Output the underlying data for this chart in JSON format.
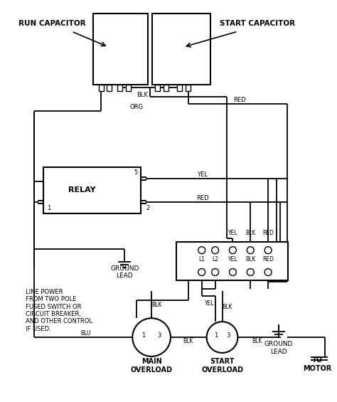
{
  "bg_color": "#ffffff",
  "line_color": "#000000",
  "lw": 1.3,
  "blw": 1.5,
  "labels": {
    "run_cap": "RUN CAPACITOR",
    "start_cap": "START CAPACITOR",
    "relay": "RELAY",
    "ground_lead": "GROUND\nLEAD",
    "main_overload": "MAIN\nOVERLOAD",
    "start_overload": "START\nOVERLOAD",
    "to_motor": "TO\nMOTOR",
    "line_power": "LINE POWER\nFROM TWO POLE\nFUSED SWITCH OR\nCIRCUIT BREAKER,\nAND OTHER CONTROL\nIF USED.",
    "blk": "BLK",
    "red": "RED",
    "org": "ORG",
    "yel": "YEL",
    "blu": "BLU",
    "l1": "L1",
    "l2": "L2",
    "num1": "1",
    "num2": "2",
    "num3": "3",
    "num5": "5"
  }
}
